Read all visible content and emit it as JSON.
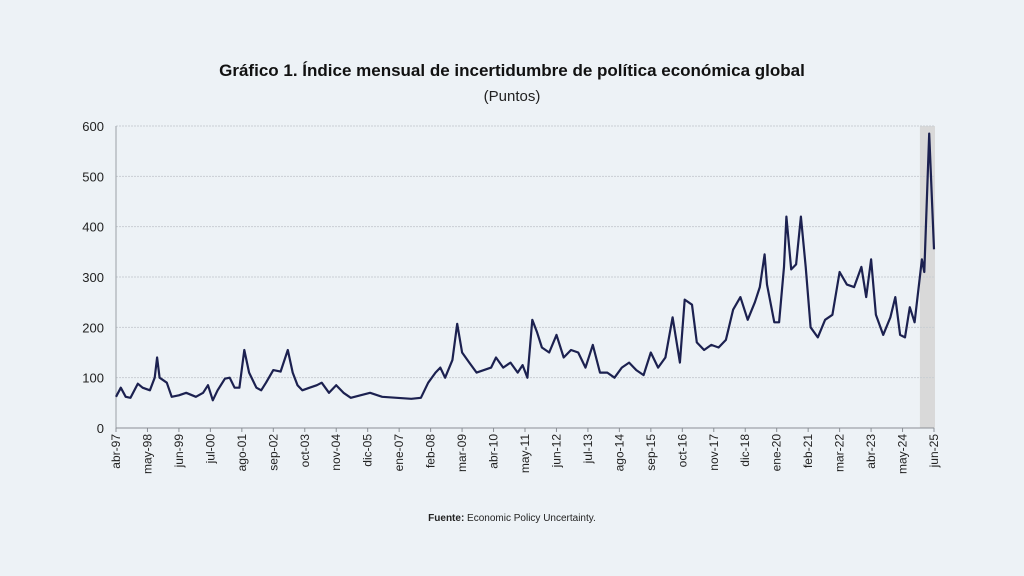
{
  "title": "Gráfico 1. Índice mensual de incertidumbre de política económica global",
  "subtitle": "(Puntos)",
  "source": {
    "label": "Fuente:",
    "text": " Economic Policy Uncertainty."
  },
  "chart_data": {
    "type": "line",
    "title": "Gráfico 1. Índice mensual de incertidumbre de política económica global",
    "subtitle": "(Puntos)",
    "xlabel": "",
    "ylabel": "",
    "ylim": [
      0,
      600
    ],
    "yticks": [
      0,
      100,
      200,
      300,
      400,
      500,
      600
    ],
    "xlim": [
      "1997-04",
      "2025-06"
    ],
    "x_ticks": [
      {
        "label": "abr-97",
        "date": "1997-04"
      },
      {
        "label": "may-98",
        "date": "1998-05"
      },
      {
        "label": "jun-99",
        "date": "1999-06"
      },
      {
        "label": "jul-00",
        "date": "2000-07"
      },
      {
        "label": "ago-01",
        "date": "2001-08"
      },
      {
        "label": "sep-02",
        "date": "2002-09"
      },
      {
        "label": "oct-03",
        "date": "2003-10"
      },
      {
        "label": "nov-04",
        "date": "2004-11"
      },
      {
        "label": "dic-05",
        "date": "2005-12"
      },
      {
        "label": "ene-07",
        "date": "2007-01"
      },
      {
        "label": "feb-08",
        "date": "2008-02"
      },
      {
        "label": "mar-09",
        "date": "2009-03"
      },
      {
        "label": "abr-10",
        "date": "2010-04"
      },
      {
        "label": "may-11",
        "date": "2011-05"
      },
      {
        "label": "jun-12",
        "date": "2012-06"
      },
      {
        "label": "jul-13",
        "date": "2013-07"
      },
      {
        "label": "ago-14",
        "date": "2014-08"
      },
      {
        "label": "sep-15",
        "date": "2015-09"
      },
      {
        "label": "oct-16",
        "date": "2016-10"
      },
      {
        "label": "nov-17",
        "date": "2017-11"
      },
      {
        "label": "dic-18",
        "date": "2018-12"
      },
      {
        "label": "ene-20",
        "date": "2020-01"
      },
      {
        "label": "feb-21",
        "date": "2021-02"
      },
      {
        "label": "mar-22",
        "date": "2022-03"
      },
      {
        "label": "abr-23",
        "date": "2023-04"
      },
      {
        "label": "may-24",
        "date": "2024-05"
      },
      {
        "label": "jun-25",
        "date": "2025-06"
      }
    ],
    "grid": true,
    "legend": "none",
    "shaded_region": {
      "from": "2025-01",
      "to": "2025-06",
      "color": "#d9d9d9"
    },
    "series": [
      {
        "color": "#1c2150",
        "points": [
          [
            "1997-04",
            62
          ],
          [
            "1997-06",
            80
          ],
          [
            "1997-08",
            62
          ],
          [
            "1997-10",
            60
          ],
          [
            "1998-01",
            88
          ],
          [
            "1998-03",
            80
          ],
          [
            "1998-06",
            75
          ],
          [
            "1998-08",
            100
          ],
          [
            "1998-09",
            140
          ],
          [
            "1998-10",
            100
          ],
          [
            "1999-01",
            90
          ],
          [
            "1999-03",
            62
          ],
          [
            "1999-06",
            65
          ],
          [
            "1999-09",
            70
          ],
          [
            "2000-01",
            62
          ],
          [
            "2000-04",
            70
          ],
          [
            "2000-06",
            85
          ],
          [
            "2000-08",
            55
          ],
          [
            "2000-10",
            75
          ],
          [
            "2001-01",
            98
          ],
          [
            "2001-03",
            100
          ],
          [
            "2001-05",
            80
          ],
          [
            "2001-07",
            80
          ],
          [
            "2001-09",
            155
          ],
          [
            "2001-11",
            110
          ],
          [
            "2002-02",
            80
          ],
          [
            "2002-04",
            75
          ],
          [
            "2002-06",
            90
          ],
          [
            "2002-09",
            115
          ],
          [
            "2002-12",
            112
          ],
          [
            "2003-03",
            155
          ],
          [
            "2003-05",
            110
          ],
          [
            "2003-07",
            85
          ],
          [
            "2003-09",
            75
          ],
          [
            "2003-12",
            80
          ],
          [
            "2004-03",
            85
          ],
          [
            "2004-05",
            90
          ],
          [
            "2004-08",
            70
          ],
          [
            "2004-11",
            85
          ],
          [
            "2005-02",
            70
          ],
          [
            "2005-05",
            60
          ],
          [
            "2005-09",
            65
          ],
          [
            "2006-01",
            70
          ],
          [
            "2006-06",
            62
          ],
          [
            "2006-12",
            60
          ],
          [
            "2007-06",
            58
          ],
          [
            "2007-10",
            60
          ],
          [
            "2008-01",
            90
          ],
          [
            "2008-04",
            110
          ],
          [
            "2008-06",
            120
          ],
          [
            "2008-08",
            100
          ],
          [
            "2008-11",
            135
          ],
          [
            "2009-01",
            207
          ],
          [
            "2009-03",
            150
          ],
          [
            "2009-06",
            130
          ],
          [
            "2009-09",
            110
          ],
          [
            "2009-12",
            115
          ],
          [
            "2010-03",
            120
          ],
          [
            "2010-05",
            140
          ],
          [
            "2010-08",
            120
          ],
          [
            "2010-11",
            130
          ],
          [
            "2011-02",
            110
          ],
          [
            "2011-04",
            125
          ],
          [
            "2011-06",
            100
          ],
          [
            "2011-08",
            215
          ],
          [
            "2011-10",
            190
          ],
          [
            "2011-12",
            160
          ],
          [
            "2012-03",
            150
          ],
          [
            "2012-06",
            185
          ],
          [
            "2012-09",
            140
          ],
          [
            "2012-12",
            155
          ],
          [
            "2013-03",
            150
          ],
          [
            "2013-06",
            120
          ],
          [
            "2013-09",
            165
          ],
          [
            "2013-12",
            110
          ],
          [
            "2014-03",
            110
          ],
          [
            "2014-06",
            100
          ],
          [
            "2014-09",
            120
          ],
          [
            "2014-12",
            130
          ],
          [
            "2015-03",
            115
          ],
          [
            "2015-06",
            105
          ],
          [
            "2015-09",
            150
          ],
          [
            "2015-12",
            120
          ],
          [
            "2016-03",
            140
          ],
          [
            "2016-06",
            220
          ],
          [
            "2016-09",
            130
          ],
          [
            "2016-11",
            255
          ],
          [
            "2017-02",
            245
          ],
          [
            "2017-04",
            170
          ],
          [
            "2017-07",
            155
          ],
          [
            "2017-10",
            165
          ],
          [
            "2018-01",
            160
          ],
          [
            "2018-04",
            175
          ],
          [
            "2018-07",
            235
          ],
          [
            "2018-10",
            260
          ],
          [
            "2019-01",
            215
          ],
          [
            "2019-04",
            250
          ],
          [
            "2019-06",
            280
          ],
          [
            "2019-08",
            345
          ],
          [
            "2019-09",
            285
          ],
          [
            "2019-12",
            210
          ],
          [
            "2020-02",
            210
          ],
          [
            "2020-04",
            320
          ],
          [
            "2020-05",
            420
          ],
          [
            "2020-07",
            315
          ],
          [
            "2020-09",
            325
          ],
          [
            "2020-11",
            420
          ],
          [
            "2021-01",
            320
          ],
          [
            "2021-03",
            200
          ],
          [
            "2021-06",
            180
          ],
          [
            "2021-09",
            215
          ],
          [
            "2021-12",
            225
          ],
          [
            "2022-03",
            310
          ],
          [
            "2022-06",
            285
          ],
          [
            "2022-09",
            280
          ],
          [
            "2022-12",
            320
          ],
          [
            "2023-02",
            260
          ],
          [
            "2023-04",
            335
          ],
          [
            "2023-06",
            225
          ],
          [
            "2023-09",
            185
          ],
          [
            "2023-12",
            220
          ],
          [
            "2024-02",
            260
          ],
          [
            "2024-04",
            185
          ],
          [
            "2024-06",
            180
          ],
          [
            "2024-08",
            240
          ],
          [
            "2024-10",
            210
          ],
          [
            "2025-01",
            335
          ],
          [
            "2025-02",
            310
          ],
          [
            "2025-04",
            585
          ],
          [
            "2025-06",
            355
          ]
        ]
      }
    ]
  }
}
